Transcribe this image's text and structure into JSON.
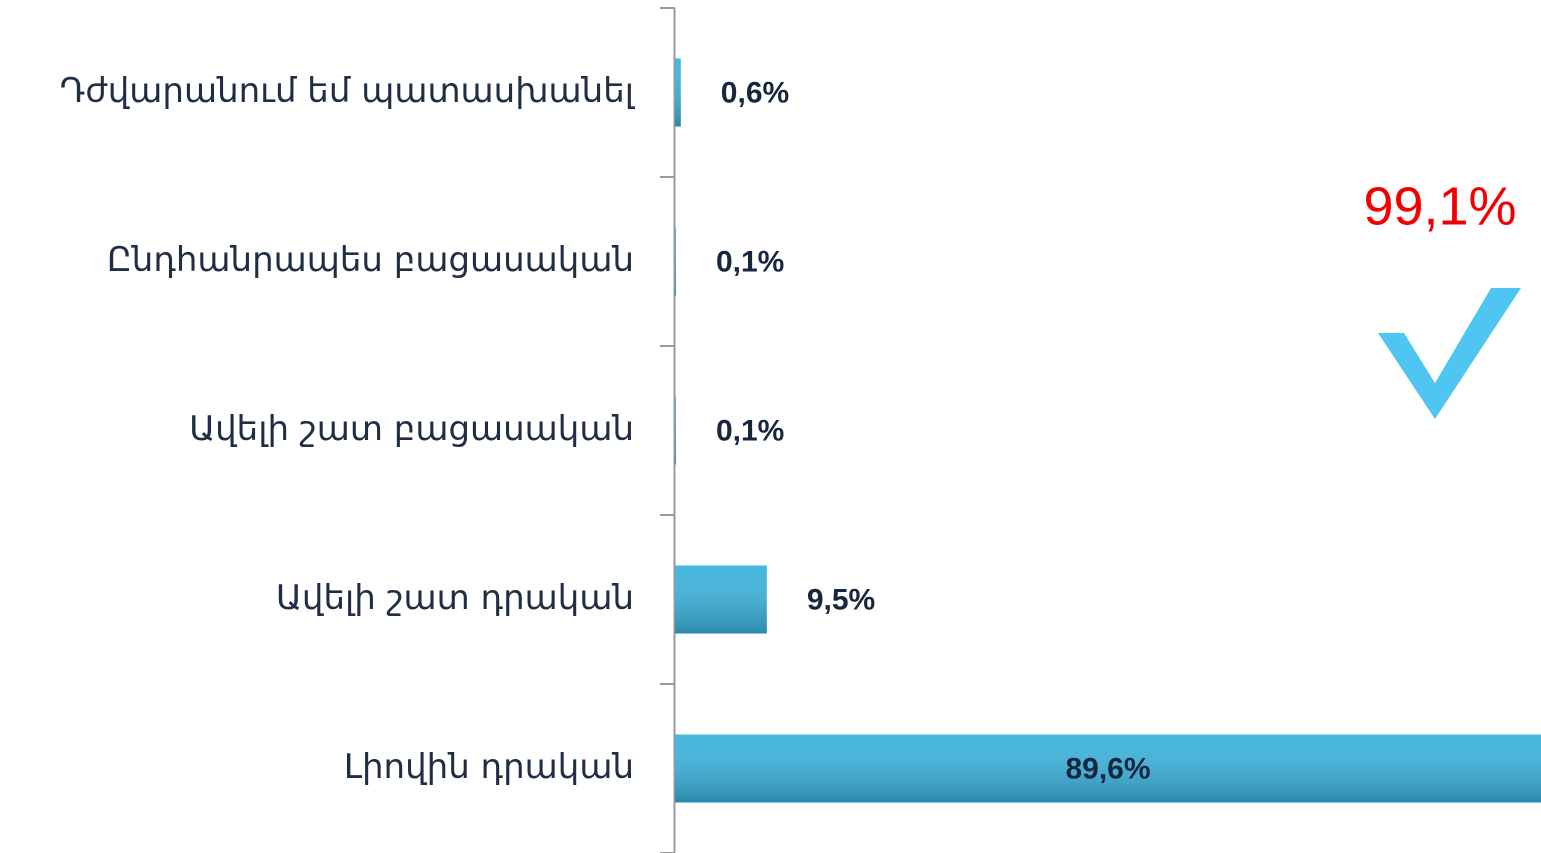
{
  "chart_data": {
    "type": "hbar",
    "categories": [
      "Դժվարանում եմ պատասխանել",
      "Ընդհանրապես բացասական",
      "Ավելի շատ բացասական",
      "Ավելի շատ դրական",
      "Լիովին դրական"
    ],
    "values": [
      0.6,
      0.1,
      0.1,
      9.5,
      89.6
    ],
    "value_labels": [
      "0,6%",
      "0,1%",
      "0,1%",
      "9,5%",
      "89,6%"
    ],
    "color": "#3ab3dc",
    "xlim": [
      0,
      89.6
    ],
    "annotation": "99,1%"
  }
}
